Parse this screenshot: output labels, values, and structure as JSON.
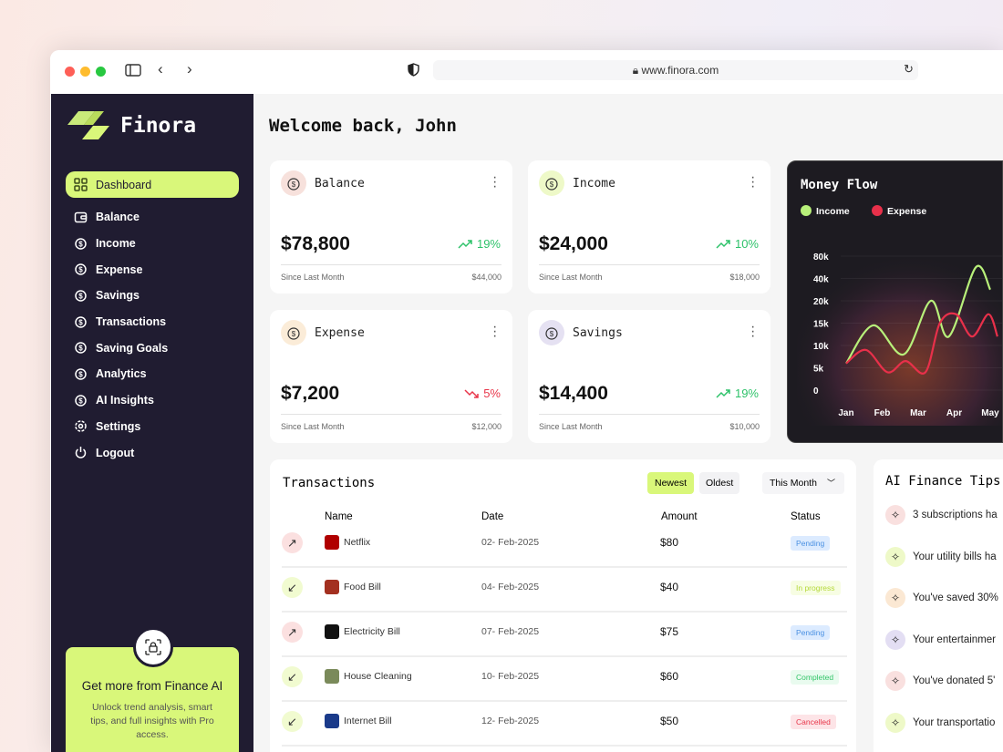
{
  "browser": {
    "url": "www.finora.com"
  },
  "sidebar": {
    "brand": "Finora",
    "items": [
      {
        "label": "Dashboard",
        "icon": "grid-icon"
      },
      {
        "label": "Balance",
        "icon": "wallet-icon"
      },
      {
        "label": "Income",
        "icon": "income-icon"
      },
      {
        "label": "Expense",
        "icon": "expense-icon"
      },
      {
        "label": "Savings",
        "icon": "jar-icon"
      },
      {
        "label": "Transactions",
        "icon": "transactions-icon"
      },
      {
        "label": "Saving Goals",
        "icon": "target-icon"
      },
      {
        "label": "Analytics",
        "icon": "analytics-icon"
      },
      {
        "label": "AI Insights",
        "icon": "ai-icon"
      },
      {
        "label": "Settings",
        "icon": "gear-icon"
      },
      {
        "label": "Logout",
        "icon": "power-icon"
      }
    ],
    "promo": {
      "title": "Get more from Finance AI",
      "text": "Unlock trend analysis, smart tips, and full insights with Pro access."
    }
  },
  "header": {
    "title": "Welcome back, John"
  },
  "stats": [
    {
      "title": "Balance",
      "value": "$78,800",
      "change": "19%",
      "trend": "up",
      "since": "Since Last Month",
      "prev": "$44,000",
      "icon_bg": "#f7e1dc"
    },
    {
      "title": "Income",
      "value": "$24,000",
      "change": "10%",
      "trend": "up",
      "since": "Since Last Month",
      "prev": "$18,000",
      "icon_bg": "#eef9c8"
    },
    {
      "title": "Expense",
      "value": "$7,200",
      "change": "5%",
      "trend": "down",
      "since": "Since Last Month",
      "prev": "$12,000",
      "icon_bg": "#fbecd8"
    },
    {
      "title": "Savings",
      "value": "$14,400",
      "change": "19%",
      "trend": "up",
      "since": "Since Last Month",
      "prev": "$10,000",
      "icon_bg": "#e5e1f2"
    }
  ],
  "colors": {
    "up": "#2ec26a",
    "down": "#e8364a",
    "accent": "#d9f77a",
    "sidebar": "#201c31",
    "income": "#b8f07a",
    "expense": "#e8304a"
  },
  "chart_data": {
    "type": "line",
    "title": "Money Flow",
    "legend": [
      "Income",
      "Expense"
    ],
    "legend_position": "top-left",
    "x_ticks": [
      "Jan",
      "Feb",
      "Mar",
      "Apr",
      "May"
    ],
    "y_ticks": [
      "0",
      "5k",
      "10k",
      "15k",
      "20k",
      "40k",
      "80k"
    ],
    "y_tick_values": [
      0,
      5000,
      10000,
      15000,
      20000,
      40000,
      80000
    ],
    "series": [
      {
        "name": "Income",
        "x": [
          0,
          0.75,
          1.6,
          2.35,
          2.85,
          3.6,
          4.0
        ],
        "y": [
          6000,
          14500,
          8000,
          20000,
          12000,
          60000,
          30000
        ]
      },
      {
        "name": "Expense",
        "x": [
          0,
          0.55,
          1.15,
          1.65,
          2.2,
          2.6,
          3.05,
          3.5,
          3.95,
          4.2
        ],
        "y": [
          6000,
          9000,
          4000,
          6500,
          4000,
          15000,
          17000,
          12000,
          17000,
          12000
        ]
      }
    ]
  },
  "transactions": {
    "title": "Transactions",
    "sort": [
      "Newest",
      "Oldest"
    ],
    "period": "This Month",
    "columns": [
      "Name",
      "Date",
      "Amount",
      "Status"
    ],
    "rows": [
      {
        "dir": "out",
        "name": "Netflix",
        "date": "02- Feb-2025",
        "amount": "$80",
        "status": "Pending"
      },
      {
        "dir": "in",
        "name": "Food Bill",
        "date": "04- Feb-2025",
        "amount": "$40",
        "status": "In progress"
      },
      {
        "dir": "out",
        "name": "Electricity Bill",
        "date": "07- Feb-2025",
        "amount": "$75",
        "status": "Pending"
      },
      {
        "dir": "in",
        "name": "House Cleaning",
        "date": "10- Feb-2025",
        "amount": "$60",
        "status": "Completed"
      },
      {
        "dir": "in",
        "name": "Internet Bill",
        "date": "12- Feb-2025",
        "amount": "$50",
        "status": "Cancelled"
      }
    ]
  },
  "tips": {
    "title": "AI Finance Tips",
    "items": [
      {
        "text": "3 subscriptions ha",
        "bg": "#f9e0df"
      },
      {
        "text": "Your utility bills ha",
        "bg": "#eef9c8"
      },
      {
        "text": "You've saved 30%",
        "bg": "#fbe8d3"
      },
      {
        "text": "Your entertainmer",
        "bg": "#e3def3"
      },
      {
        "text": "You've donated 5'",
        "bg": "#f9e0df"
      },
      {
        "text": "Your transportatio",
        "bg": "#eef9c8"
      }
    ]
  }
}
